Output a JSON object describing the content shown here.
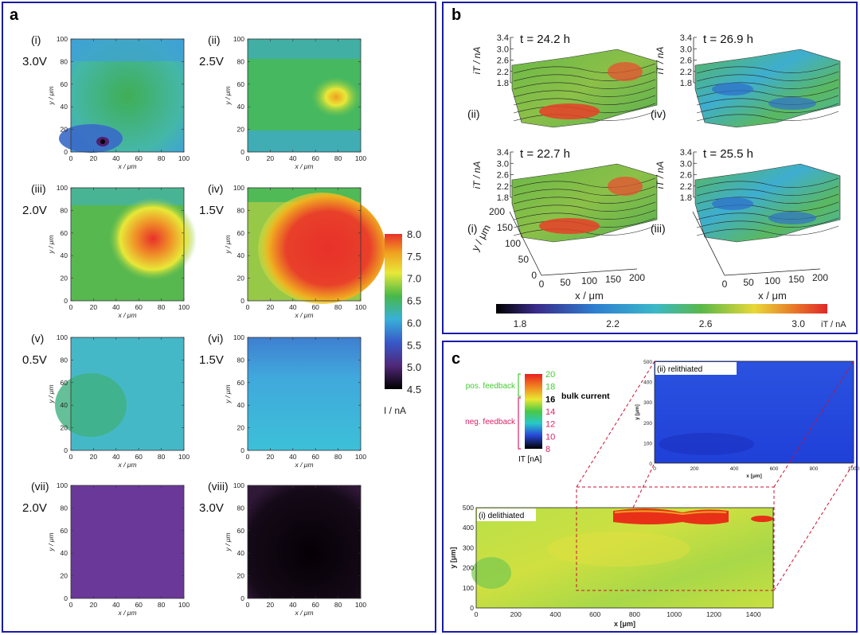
{
  "panel_a": {
    "label": "a",
    "colorbar": {
      "ticks": [
        "8.0",
        "7.5",
        "7.0",
        "6.5",
        "6.0",
        "5.5",
        "5.0",
        "4.5"
      ],
      "unit": "I  /  nA"
    },
    "maps": [
      {
        "roman": "(i)",
        "voltage": "3.0V"
      },
      {
        "roman": "(ii)",
        "voltage": "2.5V"
      },
      {
        "roman": "(iii)",
        "voltage": "2.0V"
      },
      {
        "roman": "(iv)",
        "voltage": "1.5V"
      },
      {
        "roman": "(v)",
        "voltage": "0.5V"
      },
      {
        "roman": "(vi)",
        "voltage": "1.5V"
      },
      {
        "roman": "(vii)",
        "voltage": "2.0V"
      },
      {
        "roman": "(viii)",
        "voltage": "3.0V"
      }
    ],
    "xlabel": "x  /  μm",
    "ylabel": "y  /  μm",
    "ticks": [
      "0",
      "20",
      "40",
      "60",
      "80",
      "100"
    ]
  },
  "panel_b": {
    "label": "b",
    "surfaces": [
      {
        "roman": "(ii)",
        "time": "t = 24.2 h"
      },
      {
        "roman": "(iv)",
        "time": "t = 26.9 h"
      },
      {
        "roman": "(i)",
        "time": "t = 22.7 h"
      },
      {
        "roman": "(iii)",
        "time": "t = 25.5 h"
      }
    ],
    "zlabel": "iT / nA",
    "zticks": [
      "3.4",
      "3.0",
      "2.6",
      "2.2",
      "1.8"
    ],
    "xticks": [
      "0",
      "50",
      "100",
      "150",
      "200"
    ],
    "yticks": [
      "200",
      "150",
      "100",
      "50",
      "0"
    ],
    "xlabel": "x / μm",
    "ylabel": "y / μm",
    "colorbar": {
      "ticks": [
        "1.8",
        "2.2",
        "2.6",
        "3.0"
      ],
      "unit": "iT / nA"
    }
  },
  "panel_c": {
    "label": "c",
    "colorbar": {
      "ticks": [
        "20",
        "18",
        "16",
        "14",
        "12",
        "10",
        "8"
      ],
      "unit": "IT [nA]"
    },
    "pos_feedback": "pos. feedback",
    "neg_feedback": "neg. feedback",
    "bulk_current": "bulk current",
    "top_map": {
      "title": "(ii) relithiated",
      "xticks": [
        "0",
        "200",
        "400",
        "600",
        "800",
        "1000"
      ],
      "yticks": [
        "500",
        "400",
        "300",
        "200",
        "100",
        "0"
      ],
      "xlabel": "x [μm]",
      "ylabel": "y [μm]"
    },
    "bottom_map": {
      "title": "(i) delithiated",
      "xticks": [
        "0",
        "200",
        "400",
        "600",
        "800",
        "1000",
        "1200",
        "1400"
      ],
      "yticks": [
        "500",
        "400",
        "300",
        "200",
        "100",
        "0"
      ],
      "xlabel": "x [μm]",
      "ylabel": "y [μm]"
    }
  },
  "chart_data": [
    {
      "type": "heatmap",
      "title": "",
      "panel": "a",
      "xlabel": "x  /  μm",
      "ylabel": "y  /  μm",
      "xlim": [
        0,
        100
      ],
      "ylim": [
        0,
        100
      ],
      "color_range": [
        4.5,
        8.0
      ],
      "unit": "I / nA",
      "maps": [
        "(i) 3.0V",
        "(ii) 2.5V",
        "(iii) 2.0V",
        "(iv) 1.5V",
        "(v) 0.5V",
        "(vi) 1.5V",
        "(vii) 2.0V",
        "(viii) 3.0V"
      ]
    },
    {
      "type": "area",
      "title": "",
      "panel": "b",
      "zlim": [
        1.8,
        3.4
      ],
      "xlim": [
        0,
        200
      ],
      "ylim": [
        0,
        200
      ],
      "color_range": [
        1.8,
        3.0
      ],
      "surfaces": [
        "t = 22.7 h",
        "t = 24.2 h",
        "t = 25.5 h",
        "t = 26.9 h"
      ]
    },
    {
      "type": "heatmap",
      "title": "",
      "panel": "c",
      "color_range": [
        8,
        20
      ],
      "unit": "IT [nA]",
      "maps": [
        {
          "name": "(ii) relithiated",
          "xlim": [
            0,
            1000
          ],
          "ylim": [
            0,
            500
          ]
        },
        {
          "name": "(i) delithiated",
          "xlim": [
            0,
            1500
          ],
          "ylim": [
            0,
            500
          ]
        }
      ]
    }
  ]
}
